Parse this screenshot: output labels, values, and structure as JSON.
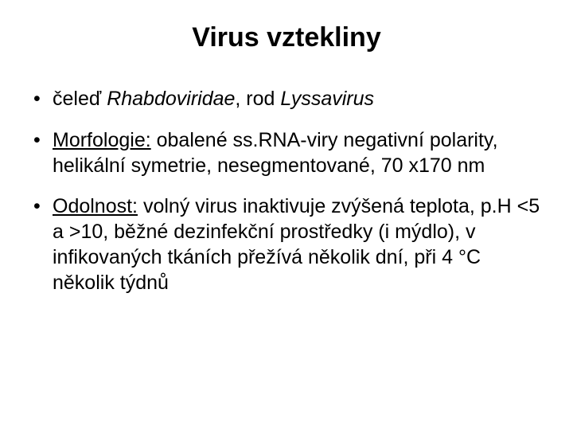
{
  "title": "Virus vztekliny",
  "bullets": {
    "b1": {
      "prefix": "čeleď ",
      "italic1": "Rhabdoviridae",
      "mid": ", rod ",
      "italic2": "Lyssavirus"
    },
    "b2": {
      "underlined": "Morfologie:",
      "rest": " obalené ss.RNA-viry negativní polarity, helikální symetrie, nesegmentované, 70 x170 nm"
    },
    "b3": {
      "underlined": "Odolnost:",
      "rest": " volný virus inaktivuje zvýšená teplota, p.H <5 a >10, běžné dezinfekční prostředky (i mýdlo), v infikovaných tkáních přežívá několik dní, při 4 °C několik týdnů"
    }
  }
}
